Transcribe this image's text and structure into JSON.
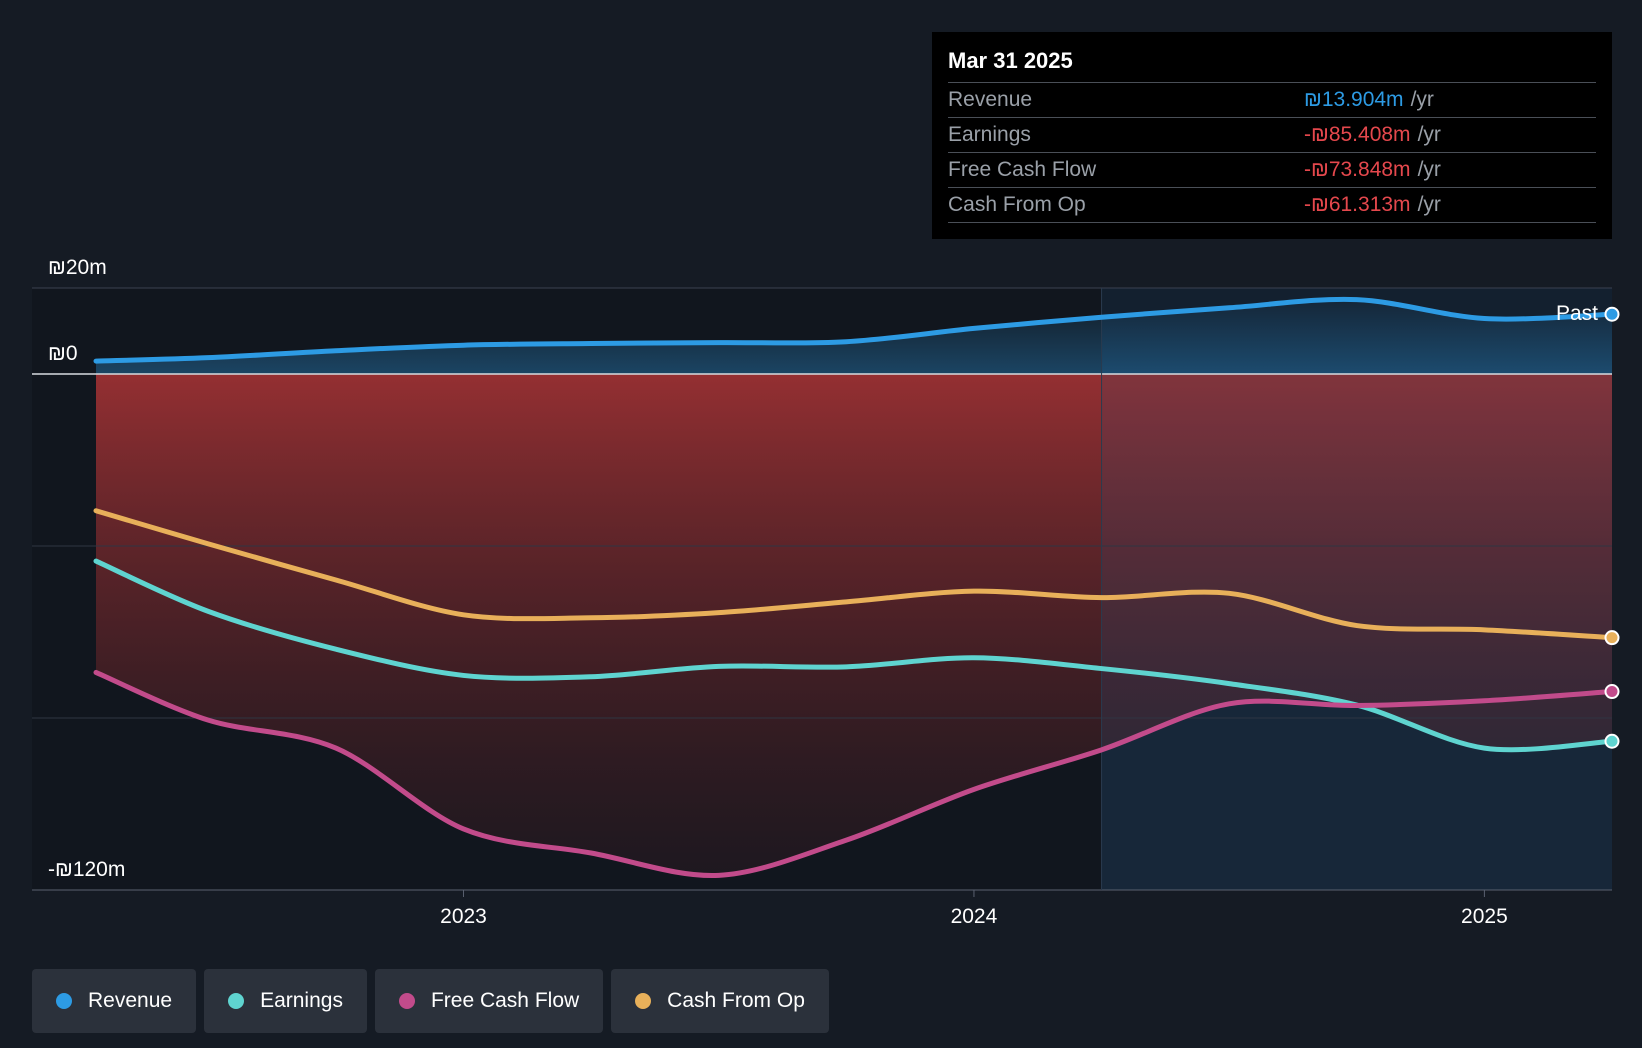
{
  "chart_data": {
    "type": "line",
    "x_ticks": [
      "2023",
      "2024",
      "2025"
    ],
    "y_tick_labels": [
      "₪20m",
      "₪0",
      "-₪120m"
    ],
    "y_ticks": [
      20,
      0,
      -120
    ],
    "ylim": [
      -120,
      20
    ],
    "past_label": "Past",
    "x": [
      2022.28,
      2022.5,
      2022.75,
      2023.0,
      2023.25,
      2023.5,
      2023.75,
      2024.0,
      2024.25,
      2024.5,
      2024.75,
      2025.0,
      2025.25
    ],
    "series": [
      {
        "name": "Revenue",
        "color": "#2d9be4",
        "values": [
          3.0,
          3.8,
          5.4,
          6.7,
          7.1,
          7.3,
          7.5,
          10.6,
          13.2,
          15.4,
          17.3,
          12.9,
          13.9
        ]
      },
      {
        "name": "Earnings",
        "color": "#5fd4d0",
        "values": [
          -43.5,
          -55.2,
          -64.0,
          -70.1,
          -70.4,
          -68.0,
          -68.1,
          -66.0,
          -68.5,
          -72.0,
          -77.0,
          -87.0,
          -85.408
        ]
      },
      {
        "name": "Free Cash Flow",
        "color": "#c24b8b",
        "values": [
          -69.4,
          -80.5,
          -87.0,
          -105.8,
          -111.4,
          -116.6,
          -108.4,
          -96.6,
          -87.4,
          -76.7,
          -77.1,
          -76.0,
          -73.848
        ]
      },
      {
        "name": "Cash From Op",
        "color": "#e8b05a",
        "values": [
          -31.8,
          -39.5,
          -47.9,
          -56.0,
          -56.7,
          -55.5,
          -53.0,
          -50.5,
          -52.0,
          -51.0,
          -58.5,
          -59.5,
          -61.313
        ]
      }
    ],
    "shaded_from": 2024.25,
    "x_range": [
      2022.15,
      2025.25
    ]
  },
  "tooltip": {
    "date": "Mar 31 2025",
    "rows": [
      {
        "label": "Revenue",
        "value": "₪13.904m",
        "unit": "/yr",
        "color": "#2d9be4"
      },
      {
        "label": "Earnings",
        "value": "-₪85.408m",
        "unit": "/yr",
        "color": "#e5484d"
      },
      {
        "label": "Free Cash Flow",
        "value": "-₪73.848m",
        "unit": "/yr",
        "color": "#e5484d"
      },
      {
        "label": "Cash From Op",
        "value": "-₪61.313m",
        "unit": "/yr",
        "color": "#e5484d"
      }
    ]
  },
  "legend": [
    {
      "label": "Revenue",
      "color": "#2d9be4"
    },
    {
      "label": "Earnings",
      "color": "#5fd4d0"
    },
    {
      "label": "Free Cash Flow",
      "color": "#c24b8b"
    },
    {
      "label": "Cash From Op",
      "color": "#e8b05a"
    }
  ]
}
